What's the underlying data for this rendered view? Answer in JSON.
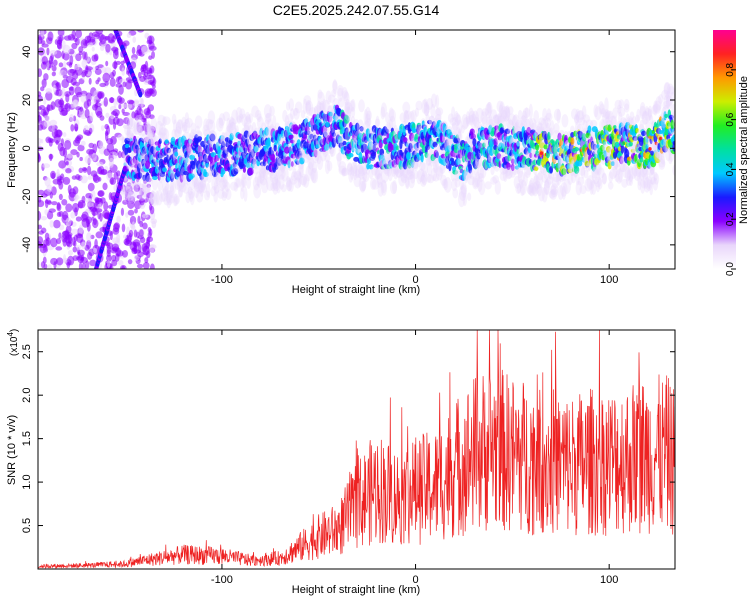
{
  "title": "C2E5.2025.242.07.55.G14",
  "chart_data": [
    {
      "type": "heatmap",
      "name": "spectrogram",
      "xlabel": "Height of straight line (km)",
      "ylabel": "Frequency (Hz)",
      "xlim": [
        -195,
        134
      ],
      "ylim": [
        -50,
        49
      ],
      "x_ticks": [
        -100,
        0,
        100
      ],
      "x_tick_labels": [
        "-100",
        "0",
        "100"
      ],
      "y_ticks": [
        40,
        20,
        0,
        -20,
        -40
      ],
      "y_tick_labels": [
        "40",
        "20",
        "0",
        "-20",
        "-40"
      ],
      "colorbar": {
        "label": "Normalized spectral amplitude",
        "range": [
          0.0,
          0.96
        ],
        "ticks": [
          0.0,
          0.2,
          0.4,
          0.6,
          0.8
        ],
        "tick_labels": [
          "0.0",
          "0.2",
          "0.4",
          "0.6",
          "0.8"
        ],
        "colors": [
          "#ffffff",
          "#e9d6fb",
          "#8a00ff",
          "#1a1aff",
          "#00c8ff",
          "#00e0a0",
          "#22ee22",
          "#ccee00",
          "#ff9900",
          "#ff2222",
          "#ff0090"
        ]
      },
      "ridge_center_hz": [
        [
          -145,
          -4
        ],
        [
          -130,
          -5
        ],
        [
          -115,
          -4
        ],
        [
          -100,
          -3
        ],
        [
          -85,
          -2
        ],
        [
          -70,
          0
        ],
        [
          -60,
          2
        ],
        [
          -50,
          6
        ],
        [
          -42,
          10
        ],
        [
          -36,
          6
        ],
        [
          -30,
          1
        ],
        [
          -20,
          0
        ],
        [
          -10,
          0
        ],
        [
          0,
          2
        ],
        [
          8,
          4
        ],
        [
          14,
          2
        ],
        [
          20,
          -2
        ],
        [
          26,
          -6
        ],
        [
          30,
          0
        ],
        [
          40,
          1
        ],
        [
          50,
          0
        ],
        [
          60,
          -1
        ],
        [
          70,
          -3
        ],
        [
          80,
          -2
        ],
        [
          90,
          0
        ],
        [
          100,
          1
        ],
        [
          110,
          2
        ],
        [
          120,
          -1
        ],
        [
          126,
          3
        ],
        [
          130,
          9
        ],
        [
          134,
          6
        ]
      ],
      "dispersion_line": [
        [
          -155,
          49
        ],
        [
          -142,
          22
        ]
      ],
      "dispersion_line_2": [
        [
          -165,
          -50
        ],
        [
          -150,
          -8
        ]
      ]
    },
    {
      "type": "line",
      "name": "snr",
      "xlabel": "Height of straight line (km)",
      "ylabel": "SNR (10 * v/v)",
      "y_multiplier": "(x10",
      "y_multiplier_exp": "4",
      "y_multiplier_close": ")",
      "xlim": [
        -195,
        134
      ],
      "ylim": [
        0,
        2.75
      ],
      "x_ticks": [
        -100,
        0,
        100
      ],
      "x_tick_labels": [
        "-100",
        "0",
        "100"
      ],
      "y_ticks": [
        0.5,
        1.0,
        1.5,
        2.0,
        2.5
      ],
      "y_tick_labels": [
        "0.5",
        "1.0",
        "1.5",
        "2.0",
        "2.5"
      ],
      "line_color": "#ee2222",
      "envelope": [
        [
          -195,
          0.04
        ],
        [
          -170,
          0.05
        ],
        [
          -150,
          0.07
        ],
        [
          -140,
          0.12
        ],
        [
          -120,
          0.2
        ],
        [
          -100,
          0.18
        ],
        [
          -85,
          0.12
        ],
        [
          -70,
          0.15
        ],
        [
          -60,
          0.3
        ],
        [
          -50,
          0.45
        ],
        [
          -40,
          0.55
        ],
        [
          -30,
          0.9
        ],
        [
          -20,
          1.15
        ],
        [
          -10,
          1.0
        ],
        [
          0,
          1.1
        ],
        [
          10,
          1.15
        ],
        [
          20,
          1.4
        ],
        [
          30,
          1.6
        ],
        [
          40,
          1.7
        ],
        [
          50,
          1.6
        ],
        [
          60,
          1.55
        ],
        [
          70,
          1.5
        ],
        [
          80,
          1.45
        ],
        [
          90,
          1.5
        ],
        [
          100,
          1.5
        ],
        [
          110,
          1.55
        ],
        [
          120,
          1.6
        ],
        [
          130,
          1.6
        ],
        [
          134,
          1.5
        ]
      ],
      "peak_max": 2.75
    }
  ]
}
